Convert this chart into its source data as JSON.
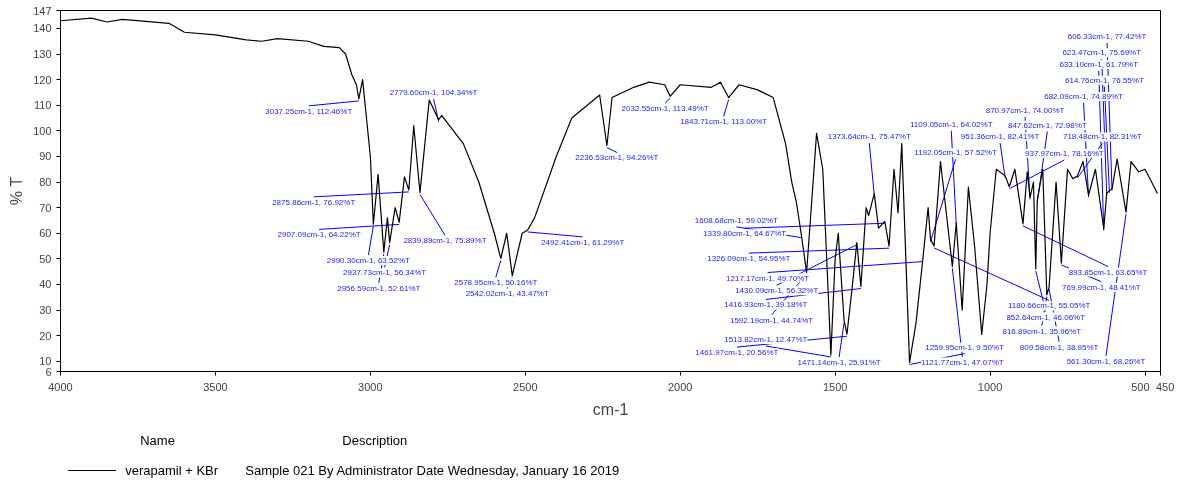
{
  "chart_data": {
    "type": "line",
    "xlabel": "cm-1",
    "ylabel": "% T",
    "legend_title": "Name",
    "legend": "bottom",
    "grid": false,
    "xlim": [
      4000,
      450
    ],
    "xticks": [
      4000,
      3500,
      3000,
      2500,
      2000,
      1500,
      1000,
      500,
      450
    ],
    "ylim": [
      6,
      147
    ],
    "yticks": [
      6,
      10,
      20,
      30,
      40,
      50,
      60,
      70,
      80,
      90,
      100,
      110,
      120,
      130,
      140,
      147
    ],
    "x": [
      4000,
      3900,
      3850,
      3800,
      3650,
      3600,
      3500,
      3400,
      3350,
      3300,
      3200,
      3150,
      3100,
      3080,
      3060,
      3045,
      3037.25,
      3025,
      3000,
      2990.3,
      2975,
      2956.59,
      2945,
      2937.73,
      2920,
      2907.09,
      2890,
      2875.86,
      2860,
      2839.89,
      2810,
      2779.6,
      2770,
      2700,
      2650,
      2600,
      2578.95,
      2560,
      2542.02,
      2510,
      2492.41,
      2470,
      2400,
      2350,
      2300,
      2260,
      2236.53,
      2220,
      2150,
      2100,
      2050,
      2032.55,
      2000,
      1900,
      1870,
      1843.71,
      1810,
      1750,
      1700,
      1660,
      1640,
      1625,
      1608.68,
      1592.19,
      1580,
      1560,
      1540,
      1520,
      1513.82,
      1500,
      1490,
      1471.14,
      1461.97,
      1447,
      1430.09,
      1416.93,
      1400,
      1392,
      1373.64,
      1360,
      1339.8,
      1326.09,
      1310,
      1297,
      1285,
      1259.95,
      1239,
      1217.17,
      1200,
      1192.05,
      1180.66,
      1160,
      1121.77,
      1109.05,
      1090,
      1070,
      1050,
      1027,
      1010,
      1000,
      980,
      951.36,
      937.97,
      920,
      893.85,
      880,
      870.97,
      860,
      852.64,
      847.62,
      830,
      816.89,
      809.58,
      787,
      769.99,
      750,
      733,
      718.48,
      700,
      682.09,
      660,
      633.1,
      623.47,
      614.76,
      606.33,
      590,
      561.3,
      545,
      520,
      500,
      470,
      460
    ],
    "series": [
      {
        "name": "verapamil + KBr",
        "color": "#000000",
        "values": [
          143,
          144,
          142.5,
          143.5,
          142,
          138.5,
          137.5,
          135.5,
          135,
          136,
          135,
          133,
          132.5,
          130,
          122,
          118,
          112.46,
          120,
          90,
          63.52,
          83,
          52.61,
          66,
          56.34,
          70,
          64.22,
          82,
          76.92,
          102,
          75.89,
          112,
          104.34,
          106,
          95,
          80,
          60,
          50.16,
          60,
          43.47,
          60,
          61.29,
          66,
          90,
          105,
          110,
          114,
          94.26,
          113,
          117,
          119,
          118,
          113.49,
          118,
          117,
          119,
          113.0,
          118,
          116,
          113,
          95,
          80,
          72,
          59.02,
          44.74,
          65,
          99,
          85,
          30,
          12.47,
          50,
          60,
          25.91,
          20.56,
          36.6,
          56.32,
          39.18,
          70,
          67,
          75.47,
          62,
          64.67,
          54.95,
          85,
          68,
          95,
          9.5,
          25,
          49.7,
          70,
          57.52,
          55.05,
          88,
          47.07,
          64.02,
          30,
          78,
          55,
          20.5,
          40,
          60,
          85,
          82.41,
          78.16,
          85,
          63.65,
          84,
          74.0,
          80,
          46.06,
          72.98,
          85,
          35.96,
          38.95,
          80,
          48.41,
          85,
          81.3,
          82.31,
          88,
          74.89,
          85,
          61.79,
          75.69,
          76.55,
          77.42,
          89,
          68.26,
          88,
          84,
          85,
          78,
          75.5
        ]
      }
    ],
    "annotations": [
      {
        "text": "3037.25cm-1, 112.46%T",
        "x": 3037.25,
        "y": 112.46
      },
      {
        "text": "2779.60cm-1, 104.34%T",
        "x": 2779.6,
        "y": 104.34
      },
      {
        "text": "2875.86cm-1, 76.92%T",
        "x": 2875.86,
        "y": 76.92
      },
      {
        "text": "2839.89cm-1, 75.89%T",
        "x": 2839.89,
        "y": 75.89
      },
      {
        "text": "2990.30cm-1, 63.52%T",
        "x": 2990.3,
        "y": 63.52
      },
      {
        "text": "2937.73cm-1, 56.34%T",
        "x": 2937.73,
        "y": 56.34
      },
      {
        "text": "2956.59cm-1, 52.61%T",
        "x": 2956.59,
        "y": 52.61
      },
      {
        "text": "2907.09cm-1, 64.22%T",
        "x": 2907.09,
        "y": 64.22
      },
      {
        "text": "2492.41cm-1, 61.29%T",
        "x": 2492.41,
        "y": 61.29
      },
      {
        "text": "2578.95cm-1, 50.16%T",
        "x": 2578.95,
        "y": 50.16
      },
      {
        "text": "2542.02cm-1, 43.47%T",
        "x": 2542.02,
        "y": 43.47
      },
      {
        "text": "2236.53cm-1, 94.26%T",
        "x": 2236.53,
        "y": 94.26
      },
      {
        "text": "2032.55cm-1, 113.49%T",
        "x": 2032.55,
        "y": 113.49
      },
      {
        "text": "1843.71cm-1, 113.00%T",
        "x": 1843.71,
        "y": 113.0
      },
      {
        "text": "1373.64cm-1, 75.47%T",
        "x": 1373.64,
        "y": 75.47
      },
      {
        "text": "1339.80cm-1, 64.67%T",
        "x": 1339.8,
        "y": 64.67
      },
      {
        "text": "1192.05cm-1, 57.52%T",
        "x": 1192.05,
        "y": 57.52
      },
      {
        "text": "1326.09cm-1, 54.95%T",
        "x": 1326.09,
        "y": 54.95
      },
      {
        "text": "1217.17cm-1, 49.70%T",
        "x": 1217.17,
        "y": 49.7
      },
      {
        "text": "1430.09cm-1, 56.32%T",
        "x": 1430.09,
        "y": 56.32
      },
      {
        "text": "1416.93cm-1, 39.18%T",
        "x": 1416.93,
        "y": 39.18
      },
      {
        "text": "1471.14cm-1, 25.91%T",
        "x": 1471.14,
        "y": 25.91
      },
      {
        "text": "1592.19cm-1, 44.74%T",
        "x": 1592.19,
        "y": 44.74
      },
      {
        "text": "1513.82cm-1, 12.47%T",
        "x": 1513.82,
        "y": 12.47
      },
      {
        "text": "1608.68cm-1, 59.02%T",
        "x": 1608.68,
        "y": 59.02
      },
      {
        "text": "1461.97cm-1, 20.56%T",
        "x": 1461.97,
        "y": 20.56
      },
      {
        "text": "1259.95cm-1, 9.50%T",
        "x": 1259.95,
        "y": 9.5
      },
      {
        "text": "1180.66cm-1, 55.05%T",
        "x": 1180.66,
        "y": 55.05
      },
      {
        "text": "1109.05cm-1, 64.02%T",
        "x": 1109.05,
        "y": 64.02
      },
      {
        "text": "1121.77cm-1, 47.07%T",
        "x": 1121.77,
        "y": 47.07
      },
      {
        "text": "951.36cm-1, 82.41%T",
        "x": 951.36,
        "y": 82.41
      },
      {
        "text": "937.97cm-1, 78.16%T",
        "x": 937.97,
        "y": 78.16
      },
      {
        "text": "893.85cm-1, 63.65%T",
        "x": 893.85,
        "y": 63.65
      },
      {
        "text": "870.97cm-1, 74.00%T",
        "x": 870.97,
        "y": 74.0
      },
      {
        "text": "852.64cm-1, 46.06%T",
        "x": 852.64,
        "y": 46.06
      },
      {
        "text": "847.62cm-1, 72.98%T",
        "x": 847.62,
        "y": 72.98
      },
      {
        "text": "769.99cm-1, 48.41%T",
        "x": 769.99,
        "y": 48.41
      },
      {
        "text": "718.48cm-1, 82.31%T",
        "x": 718.48,
        "y": 82.31
      },
      {
        "text": "682.09cm-1, 74.89%T",
        "x": 682.09,
        "y": 74.89
      },
      {
        "text": "816.89cm-1, 35.96%T",
        "x": 816.89,
        "y": 35.96
      },
      {
        "text": "809.58cm-1, 38.95%T",
        "x": 809.58,
        "y": 38.95
      },
      {
        "text": "614.76cm-1, 76.55%T",
        "x": 614.76,
        "y": 76.55
      },
      {
        "text": "561.30cm-1, 68.26%T",
        "x": 561.3,
        "y": 68.26
      },
      {
        "text": "633.10cm-1, 61.79%T",
        "x": 633.1,
        "y": 61.79
      },
      {
        "text": "623.47cm-1, 75.69%T",
        "x": 623.47,
        "y": 75.69
      },
      {
        "text": "606.33cm-1, 77.42%T",
        "x": 606.33,
        "y": 77.42
      },
      "Description",
      "Sample 021 By Administrator Date Wednesday, January 16 2019"
    ]
  }
}
